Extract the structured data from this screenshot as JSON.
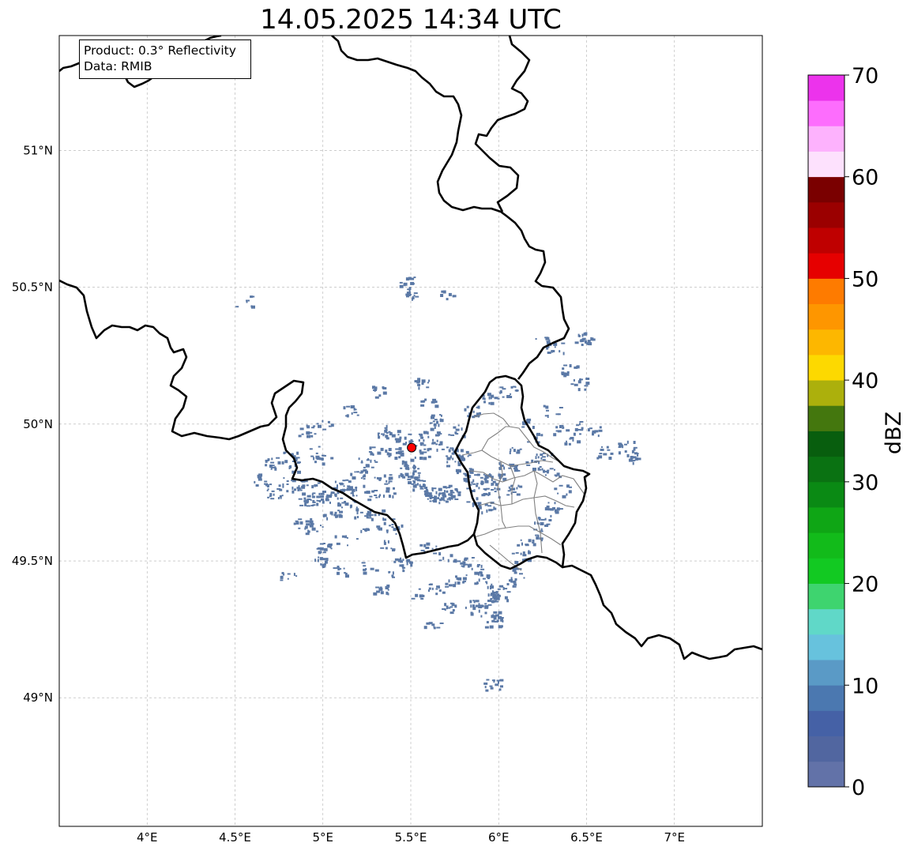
{
  "title": "14.05.2025 14:34 UTC",
  "info_box": {
    "product": "Product: 0.3° Reflectivity",
    "data_source": "Data: RMIB"
  },
  "map": {
    "lon_range": [
      3.5,
      7.5
    ],
    "lat_range": [
      48.53,
      51.42
    ],
    "gridlines": true,
    "lon_ticks": [
      {
        "value": 4.0,
        "label": "4°E"
      },
      {
        "value": 4.5,
        "label": "4.5°E"
      },
      {
        "value": 5.0,
        "label": "5°E"
      },
      {
        "value": 5.5,
        "label": "5.5°E"
      },
      {
        "value": 6.0,
        "label": "6°E"
      },
      {
        "value": 6.5,
        "label": "6.5°E"
      },
      {
        "value": 7.0,
        "label": "7°E"
      }
    ],
    "lat_ticks": [
      {
        "value": 51.0,
        "label": "51°N"
      },
      {
        "value": 50.5,
        "label": "50.5°N"
      },
      {
        "value": 50.0,
        "label": "50°N"
      },
      {
        "value": 49.5,
        "label": "49.5°N"
      },
      {
        "value": 49.0,
        "label": "49°N"
      }
    ],
    "radar_site": {
      "lon": 5.505,
      "lat": 49.914,
      "color": "#ff0000"
    },
    "echo_color": "#5b79a6",
    "echoes": [
      [
        5.48,
        49.86
      ],
      [
        5.52,
        49.82
      ],
      [
        5.5,
        49.8
      ],
      [
        5.55,
        49.78
      ],
      [
        5.6,
        49.76
      ],
      [
        5.65,
        49.75
      ],
      [
        5.7,
        49.74
      ],
      [
        5.72,
        49.76
      ],
      [
        5.68,
        49.73
      ],
      [
        5.62,
        49.74
      ],
      [
        5.45,
        49.83
      ],
      [
        5.42,
        49.88
      ],
      [
        5.4,
        49.9
      ],
      [
        5.53,
        49.92
      ],
      [
        5.57,
        49.9
      ],
      [
        5.45,
        49.95
      ],
      [
        5.4,
        49.98
      ],
      [
        5.35,
        49.97
      ],
      [
        5.3,
        49.9
      ],
      [
        5.25,
        49.86
      ],
      [
        5.2,
        49.82
      ],
      [
        5.1,
        49.78
      ],
      [
        5.05,
        49.75
      ],
      [
        5.0,
        49.74
      ],
      [
        4.95,
        49.73
      ],
      [
        4.9,
        49.72
      ],
      [
        5.08,
        49.7
      ],
      [
        5.15,
        49.71
      ],
      [
        5.22,
        49.68
      ],
      [
        5.3,
        49.67
      ],
      [
        5.35,
        49.64
      ],
      [
        5.4,
        49.62
      ],
      [
        5.05,
        49.68
      ],
      [
        4.92,
        49.79
      ],
      [
        4.84,
        49.77
      ],
      [
        4.78,
        49.79
      ],
      [
        4.72,
        49.75
      ],
      [
        4.65,
        49.8
      ],
      [
        4.95,
        49.62
      ],
      [
        4.88,
        49.64
      ],
      [
        5.75,
        49.86
      ],
      [
        5.78,
        49.9
      ],
      [
        5.8,
        49.82
      ],
      [
        5.85,
        49.78
      ],
      [
        5.9,
        49.8
      ],
      [
        5.95,
        49.75
      ],
      [
        5.92,
        49.7
      ],
      [
        5.86,
        49.72
      ],
      [
        5.6,
        49.55
      ],
      [
        5.7,
        49.52
      ],
      [
        5.8,
        49.5
      ],
      [
        5.85,
        49.47
      ],
      [
        5.9,
        49.44
      ],
      [
        5.95,
        49.4
      ],
      [
        6.0,
        49.38
      ],
      [
        5.93,
        49.35
      ],
      [
        5.88,
        49.32
      ],
      [
        5.98,
        49.3
      ],
      [
        5.97,
        49.28
      ],
      [
        6.05,
        49.42
      ],
      [
        6.1,
        49.46
      ],
      [
        6.12,
        49.52
      ],
      [
        5.75,
        49.43
      ],
      [
        5.65,
        49.4
      ],
      [
        5.7,
        49.33
      ],
      [
        5.85,
        49.34
      ],
      [
        5.45,
        49.5
      ],
      [
        5.35,
        49.56
      ],
      [
        5.2,
        49.6
      ],
      [
        5.1,
        49.58
      ],
      [
        5.0,
        49.55
      ],
      [
        4.8,
        49.45
      ],
      [
        5.6,
        50.08
      ],
      [
        5.55,
        50.15
      ],
      [
        5.3,
        50.12
      ],
      [
        5.15,
        50.05
      ],
      [
        5.0,
        50.0
      ],
      [
        4.9,
        49.98
      ],
      [
        4.95,
        49.9
      ],
      [
        4.85,
        49.85
      ],
      [
        5.65,
        50.02
      ],
      [
        5.75,
        49.98
      ],
      [
        5.85,
        50.05
      ],
      [
        5.95,
        50.1
      ],
      [
        6.05,
        50.12
      ],
      [
        6.15,
        50.0
      ],
      [
        6.2,
        49.95
      ],
      [
        6.25,
        49.88
      ],
      [
        6.3,
        49.82
      ],
      [
        6.35,
        49.76
      ],
      [
        6.3,
        49.7
      ],
      [
        6.25,
        49.65
      ],
      [
        6.2,
        49.6
      ],
      [
        6.15,
        49.56
      ],
      [
        6.1,
        49.9
      ],
      [
        6.05,
        49.85
      ],
      [
        6.0,
        49.8
      ],
      [
        6.08,
        49.76
      ],
      [
        6.2,
        49.85
      ],
      [
        6.3,
        50.05
      ],
      [
        6.35,
        49.98
      ],
      [
        6.42,
        49.95
      ],
      [
        6.48,
        50.0
      ],
      [
        6.55,
        49.98
      ],
      [
        6.6,
        49.9
      ],
      [
        6.45,
        50.15
      ],
      [
        6.4,
        50.2
      ],
      [
        6.32,
        50.28
      ],
      [
        6.48,
        50.3
      ],
      [
        6.5,
        50.32
      ],
      [
        6.72,
        49.92
      ],
      [
        6.75,
        49.88
      ],
      [
        4.55,
        50.45
      ],
      [
        5.48,
        50.52
      ],
      [
        5.5,
        50.48
      ],
      [
        5.7,
        50.47
      ],
      [
        6.25,
        50.3
      ],
      [
        5.0,
        49.87
      ],
      [
        4.8,
        49.88
      ],
      [
        4.7,
        49.86
      ],
      [
        5.58,
        49.95
      ],
      [
        5.62,
        49.98
      ],
      [
        5.68,
        49.93
      ],
      [
        5.72,
        49.9
      ],
      [
        5.38,
        49.76
      ],
      [
        5.33,
        49.8
      ],
      [
        5.28,
        49.74
      ],
      [
        5.18,
        49.76
      ],
      [
        5.96,
        49.05
      ],
      [
        5.62,
        49.27
      ],
      [
        5.55,
        49.38
      ],
      [
        5.42,
        49.46
      ],
      [
        5.32,
        49.4
      ],
      [
        5.25,
        49.48
      ],
      [
        4.98,
        49.5
      ],
      [
        5.08,
        49.47
      ]
    ],
    "country_borders_desc": [
      "Belgium",
      "Netherlands",
      "Germany",
      "Luxembourg",
      "France"
    ],
    "luxembourg_cantons": true
  },
  "colorbar": {
    "label": "dBZ",
    "min": 0,
    "max": 70,
    "step": 2.5,
    "ticks": [
      "0",
      "10",
      "20",
      "30",
      "40",
      "50",
      "60",
      "70"
    ],
    "colors": [
      "#6272a8",
      "#5166a0",
      "#4561a6",
      "#4b78b0",
      "#5a9ac6",
      "#67c2dd",
      "#60d8c8",
      "#3ed46f",
      "#12c922",
      "#12bb1a",
      "#0fa615",
      "#0a8a14",
      "#0a7212",
      "#085e0e",
      "#44770e",
      "#acb00c",
      "#fdd900",
      "#fdb700",
      "#fe9600",
      "#fe7b00",
      "#e60000",
      "#bf0000",
      "#9b0000",
      "#7a0000",
      "#fde1fd",
      "#fdb2fd",
      "#fd6dfd",
      "#ec33ec"
    ]
  }
}
